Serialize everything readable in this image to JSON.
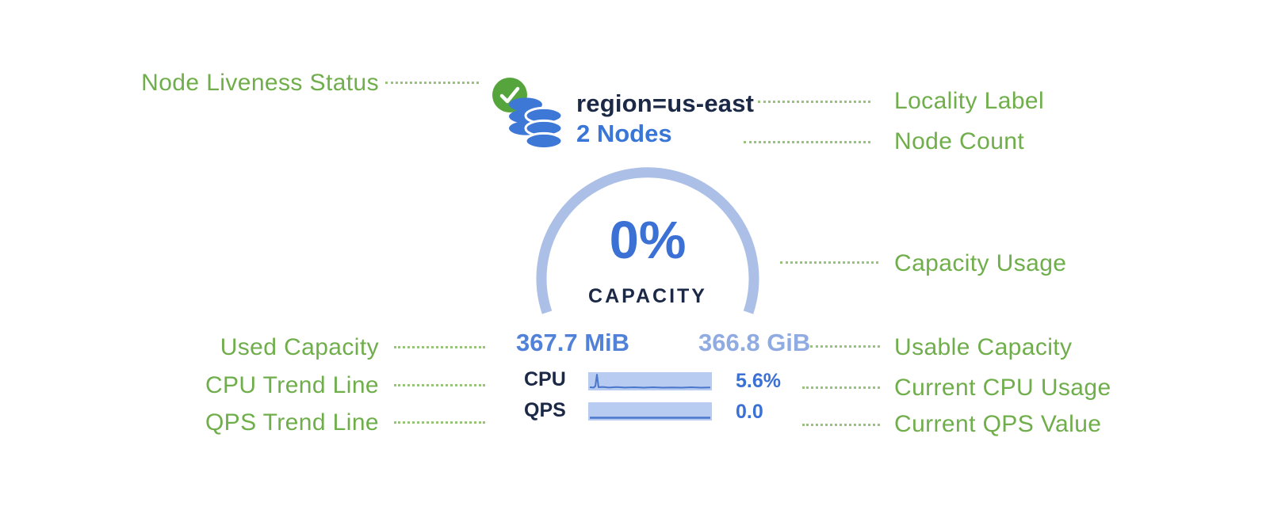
{
  "widget": {
    "status_icon": "check-circle-icon",
    "node_icon": "database-stack-icon",
    "locality_label": "region=us-east",
    "node_count": "2 Nodes",
    "gauge": {
      "percent": "0%",
      "caption": "CAPACITY",
      "used_capacity": "367.7 MiB",
      "usable_capacity": "366.8 GiB"
    },
    "metrics": [
      {
        "label": "CPU",
        "value": "5.6%",
        "trend_points": [
          [
            2,
            19
          ],
          [
            7,
            19.4
          ],
          [
            9,
            17.5
          ],
          [
            11,
            3
          ],
          [
            13,
            19
          ],
          [
            18,
            18.6
          ],
          [
            26,
            19.4
          ],
          [
            36,
            18.8
          ],
          [
            46,
            19.4
          ],
          [
            58,
            19
          ],
          [
            70,
            19.5
          ],
          [
            82,
            19
          ],
          [
            94,
            19.5
          ],
          [
            106,
            19.2
          ],
          [
            118,
            19.5
          ],
          [
            130,
            19
          ],
          [
            142,
            19.5
          ],
          [
            154,
            19.2
          ]
        ]
      },
      {
        "label": "QPS",
        "value": "0.0",
        "trend_points": [
          [
            2,
            19.5
          ],
          [
            154,
            19.5
          ]
        ]
      }
    ]
  },
  "annotations": {
    "left": [
      {
        "label": "Node Liveness Status"
      },
      {
        "label": "Used Capacity"
      },
      {
        "label": "CPU Trend Line"
      },
      {
        "label": "QPS Trend Line"
      }
    ],
    "right": [
      {
        "label": "Locality Label"
      },
      {
        "label": "Node Count"
      },
      {
        "label": "Capacity Usage"
      },
      {
        "label": "Usable Capacity"
      },
      {
        "label": "Current CPU Usage"
      },
      {
        "label": "Current QPS Value"
      }
    ]
  },
  "colors": {
    "annotation_green": "#6FAE4B",
    "leader_green": "#85B963",
    "status_green": "#56A53C",
    "icon_blue": "#3E78D7",
    "navy": "#1B2946",
    "accent_blue": "#3B70D4",
    "used_blue": "#5181D8",
    "usable_blue": "#90ABE2",
    "arc_light_blue": "#ACC0E7",
    "bar_fill": "#B8CBF0",
    "spark_line": "#4A77CC"
  }
}
